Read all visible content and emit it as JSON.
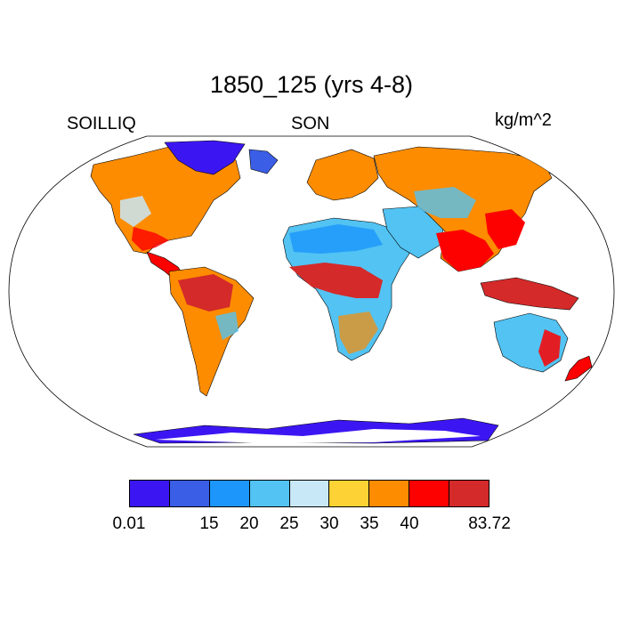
{
  "title": "1850_125 (yrs 4-8)",
  "subtitle_left": "SOILLIQ",
  "subtitle_center": "SON",
  "subtitle_right": "kg/m^2",
  "colorbar": {
    "colors": [
      "#3c16f2",
      "#3a5ee6",
      "#1c96fb",
      "#52c3f2",
      "#c8e8f8",
      "#fdd234",
      "#fd8c00",
      "#fd0000",
      "#d42a2a"
    ],
    "labels": [
      "0.01",
      "",
      "15",
      "20",
      "25",
      "30",
      "35",
      "40",
      "",
      "83.72"
    ]
  },
  "colors": {
    "ocean": "#ffffff",
    "coast": "#000000"
  }
}
